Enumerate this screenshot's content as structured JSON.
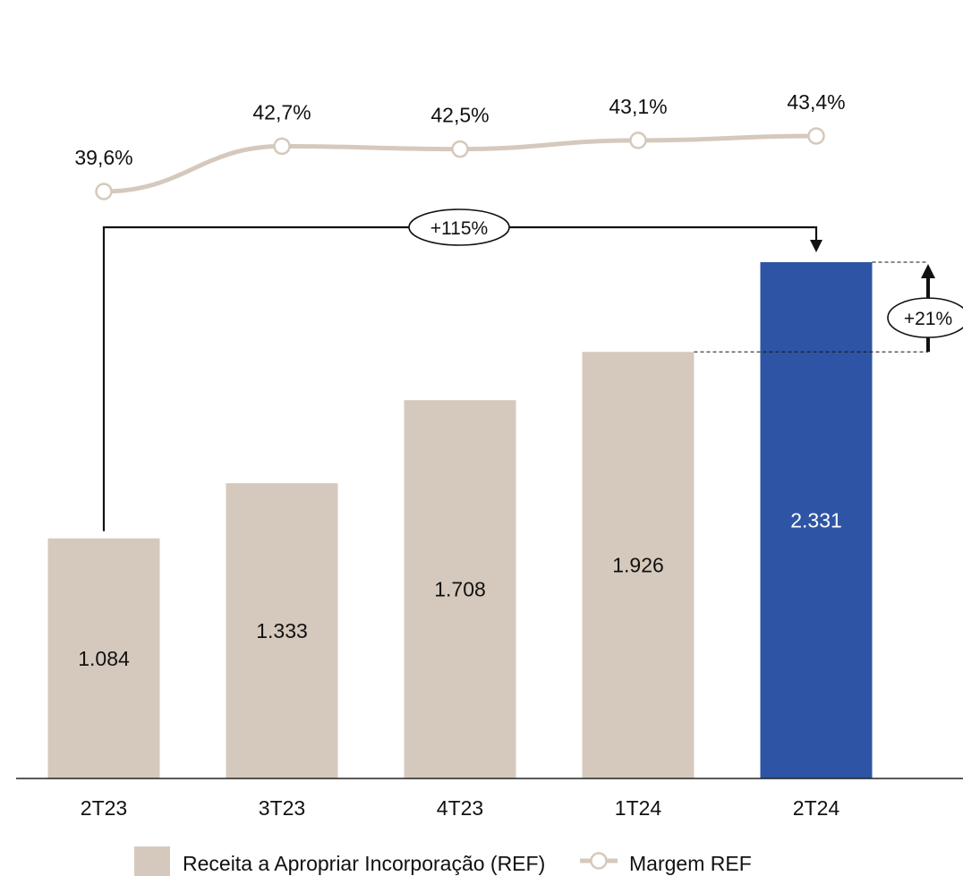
{
  "chart_data": {
    "type": "bar",
    "categories": [
      "2T23",
      "3T23",
      "4T23",
      "1T24",
      "2T24"
    ],
    "series": [
      {
        "name": "Receita a Apropriar Incorporação (REF)",
        "kind": "bar",
        "values": [
          1084,
          1333,
          1708,
          1926,
          2331
        ],
        "value_labels": [
          "1.084",
          "1.333",
          "1.708",
          "1.926",
          "2.331"
        ],
        "colors": [
          "#D5C9BD",
          "#D5C9BD",
          "#D5C9BD",
          "#D5C9BD",
          "#2E55A5"
        ]
      },
      {
        "name": "Margem REF",
        "kind": "line",
        "values": [
          39.6,
          42.7,
          42.5,
          43.1,
          43.4
        ],
        "value_labels": [
          "39,6%",
          "42,7%",
          "42,5%",
          "43,1%",
          "43,4%"
        ],
        "color": "#D5C9BD"
      }
    ],
    "annotations": [
      {
        "text": "+115%",
        "from": "2T23",
        "to": "2T24"
      },
      {
        "text": "+21%",
        "from": "1T24",
        "to": "2T24"
      }
    ],
    "legend_position": "bottom",
    "grid": false
  }
}
